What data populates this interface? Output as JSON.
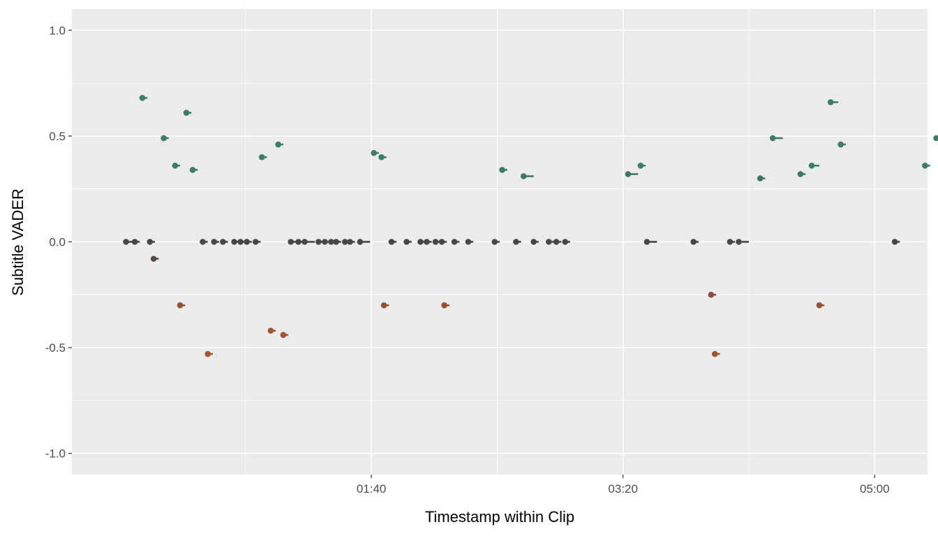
{
  "chart_data": {
    "type": "scatter",
    "xlabel": "Timestamp within Clip",
    "ylabel": "Subtitle VADER",
    "xlim": [
      -19,
      321
    ],
    "ylim": [
      -1.1,
      1.1
    ],
    "x_ticks": [
      {
        "value": 100,
        "label": "01:40"
      },
      {
        "value": 200,
        "label": "03:20"
      },
      {
        "value": 300,
        "label": "05:00"
      }
    ],
    "x_minor_ticks": [
      50,
      150,
      250
    ],
    "y_ticks": [
      {
        "value": 1.0,
        "label": "1.0"
      },
      {
        "value": 0.5,
        "label": "0.5"
      },
      {
        "value": 0.0,
        "label": "0.0"
      },
      {
        "value": -0.5,
        "label": "-0.5"
      },
      {
        "value": -1.0,
        "label": "-1.0"
      }
    ],
    "y_minor_ticks": [
      0.75,
      0.25,
      -0.25,
      -0.75
    ],
    "grid": true,
    "legend": "none",
    "colors": {
      "panel": "#ebebeb",
      "grid": "#ffffff",
      "neutral": "#474747",
      "positive": "#3b7d68",
      "negative": "#a3532e"
    },
    "points": [
      {
        "x": 2.5,
        "y": 0.0,
        "dur": 4
      },
      {
        "x": 6,
        "y": 0.0,
        "dur": 2
      },
      {
        "x": 9,
        "y": 0.68,
        "dur": 2
      },
      {
        "x": 12,
        "y": 0.0,
        "dur": 2
      },
      {
        "x": 13.5,
        "y": -0.08,
        "dur": 2
      },
      {
        "x": 17.5,
        "y": 0.49,
        "dur": 2
      },
      {
        "x": 22,
        "y": 0.36,
        "dur": 2
      },
      {
        "x": 24,
        "y": -0.3,
        "dur": 2
      },
      {
        "x": 26.5,
        "y": 0.61,
        "dur": 2
      },
      {
        "x": 29,
        "y": 0.34,
        "dur": 2
      },
      {
        "x": 33,
        "y": 0.0,
        "dur": 2
      },
      {
        "x": 35,
        "y": -0.53,
        "dur": 2
      },
      {
        "x": 37.5,
        "y": 0.0,
        "dur": 2
      },
      {
        "x": 41,
        "y": 0.0,
        "dur": 2
      },
      {
        "x": 45.5,
        "y": 0.0,
        "dur": 2
      },
      {
        "x": 48,
        "y": 0.0,
        "dur": 2
      },
      {
        "x": 50.5,
        "y": 0.0,
        "dur": 2
      },
      {
        "x": 54,
        "y": 0.0,
        "dur": 2
      },
      {
        "x": 56.5,
        "y": 0.4,
        "dur": 2
      },
      {
        "x": 60,
        "y": -0.42,
        "dur": 2
      },
      {
        "x": 63,
        "y": 0.46,
        "dur": 2
      },
      {
        "x": 65,
        "y": -0.44,
        "dur": 2
      },
      {
        "x": 68,
        "y": 0.0,
        "dur": 2
      },
      {
        "x": 71,
        "y": 0.0,
        "dur": 2
      },
      {
        "x": 73.5,
        "y": 0.0,
        "dur": 4
      },
      {
        "x": 79,
        "y": 0.0,
        "dur": 2
      },
      {
        "x": 81.5,
        "y": 0.0,
        "dur": 2
      },
      {
        "x": 84,
        "y": 0.0,
        "dur": 2
      },
      {
        "x": 86,
        "y": 0.0,
        "dur": 2
      },
      {
        "x": 89.5,
        "y": 0.0,
        "dur": 2
      },
      {
        "x": 91.5,
        "y": 0.0,
        "dur": 2
      },
      {
        "x": 95.5,
        "y": 0.0,
        "dur": 4
      },
      {
        "x": 101,
        "y": 0.42,
        "dur": 2
      },
      {
        "x": 104,
        "y": 0.4,
        "dur": 2
      },
      {
        "x": 105,
        "y": -0.3,
        "dur": 2
      },
      {
        "x": 108,
        "y": 0.0,
        "dur": 2
      },
      {
        "x": 114,
        "y": 0.0,
        "dur": 2
      },
      {
        "x": 119.5,
        "y": 0.0,
        "dur": 2
      },
      {
        "x": 122,
        "y": 0.0,
        "dur": 2
      },
      {
        "x": 125.5,
        "y": 0.0,
        "dur": 2
      },
      {
        "x": 128,
        "y": 0.0,
        "dur": 2
      },
      {
        "x": 129,
        "y": -0.3,
        "dur": 2
      },
      {
        "x": 133,
        "y": 0.0,
        "dur": 2
      },
      {
        "x": 138.5,
        "y": 0.0,
        "dur": 2
      },
      {
        "x": 149,
        "y": 0.0,
        "dur": 2
      },
      {
        "x": 152,
        "y": 0.34,
        "dur": 2
      },
      {
        "x": 157.5,
        "y": 0.0,
        "dur": 2
      },
      {
        "x": 160.5,
        "y": 0.31,
        "dur": 4
      },
      {
        "x": 164.5,
        "y": 0.0,
        "dur": 2
      },
      {
        "x": 170.5,
        "y": 0.0,
        "dur": 2
      },
      {
        "x": 173.5,
        "y": 0.0,
        "dur": 2
      },
      {
        "x": 177,
        "y": 0.0,
        "dur": 2
      },
      {
        "x": 202,
        "y": 0.32,
        "dur": 4
      },
      {
        "x": 207,
        "y": 0.36,
        "dur": 2
      },
      {
        "x": 209.5,
        "y": 0.0,
        "dur": 4
      },
      {
        "x": 228,
        "y": 0.0,
        "dur": 2
      },
      {
        "x": 235,
        "y": -0.25,
        "dur": 2
      },
      {
        "x": 236.5,
        "y": -0.53,
        "dur": 2
      },
      {
        "x": 242.5,
        "y": 0.0,
        "dur": 2
      },
      {
        "x": 246,
        "y": 0.0,
        "dur": 4
      },
      {
        "x": 254.5,
        "y": 0.3,
        "dur": 2
      },
      {
        "x": 259.5,
        "y": 0.49,
        "dur": 4
      },
      {
        "x": 270.5,
        "y": 0.32,
        "dur": 2
      },
      {
        "x": 275,
        "y": 0.36,
        "dur": 3
      },
      {
        "x": 278,
        "y": -0.3,
        "dur": 2
      },
      {
        "x": 282.5,
        "y": 0.66,
        "dur": 3
      },
      {
        "x": 286.5,
        "y": 0.46,
        "dur": 2
      },
      {
        "x": 308,
        "y": 0.0,
        "dur": 2
      },
      {
        "x": 320,
        "y": 0.36,
        "dur": 2
      },
      {
        "x": 324.5,
        "y": 0.49,
        "dur": 2
      }
    ]
  }
}
